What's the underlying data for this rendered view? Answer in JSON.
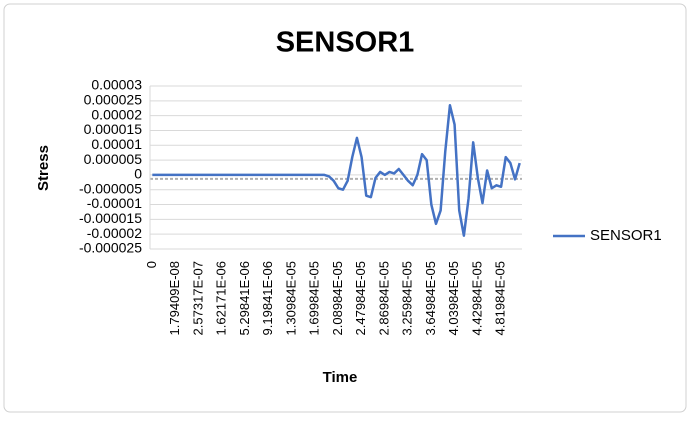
{
  "chart_data": {
    "type": "line",
    "title": "SENSOR1",
    "x_label": "Time",
    "y_label": "Stress",
    "categories": [
      "0",
      null,
      null,
      null,
      null,
      "1.79409E-08",
      null,
      null,
      null,
      null,
      "2.57317E-07",
      null,
      null,
      null,
      null,
      "1.62171E-06",
      null,
      null,
      null,
      null,
      "5.29841E-06",
      null,
      null,
      null,
      null,
      "9.19841E-06",
      null,
      null,
      null,
      null,
      "1.30984E-05",
      null,
      null,
      null,
      null,
      "1.69984E-05",
      null,
      null,
      null,
      null,
      "2.08984E-05",
      null,
      null,
      null,
      null,
      "2.47984E-05",
      null,
      null,
      null,
      null,
      "2.86984E-05",
      null,
      null,
      null,
      null,
      "3.25984E-05",
      null,
      null,
      null,
      null,
      "3.64984E-05",
      null,
      null,
      null,
      null,
      "4.03984E-05",
      null,
      null,
      null,
      null,
      "4.42984E-05",
      null,
      null,
      null,
      null,
      "4.81984E-05",
      null,
      null,
      null,
      null
    ],
    "series": [
      {
        "name": "SENSOR1",
        "color": "#4472c4",
        "values": [
          0,
          0,
          0,
          0,
          0,
          0,
          0,
          0,
          0,
          0,
          0,
          0,
          0,
          0,
          0,
          0,
          0,
          0,
          0,
          0,
          0,
          0,
          0,
          0,
          0,
          0,
          0,
          0,
          0,
          0,
          0,
          0,
          0,
          0,
          0,
          0,
          0,
          0,
          -5e-07,
          -2e-06,
          -4.5e-06,
          -5e-06,
          -2e-06,
          6e-06,
          1.25e-05,
          6e-06,
          -7e-06,
          -7.5e-06,
          -1e-06,
          1e-06,
          0,
          1e-06,
          5e-07,
          2e-06,
          0,
          -2e-06,
          -3.5e-06,
          0,
          7e-06,
          5e-06,
          -1e-05,
          -1.65e-05,
          -1.2e-05,
          8e-06,
          2.35e-05,
          1.7e-05,
          -1.2e-05,
          -2.05e-05,
          -8e-06,
          1.1e-05,
          -1e-06,
          -9.5e-06,
          1.5e-06,
          -4.5e-06,
          -3.5e-06,
          -4e-06,
          6e-06,
          4e-06,
          -1.5e-06,
          4e-06
        ]
      }
    ],
    "ylim": [
      -2.5e-05,
      3e-05
    ],
    "yticks": [
      3e-05,
      2.5e-05,
      2e-05,
      1.5e-05,
      1e-05,
      5e-06,
      0,
      -5e-06,
      -1e-05,
      -1.5e-05,
      -2e-05,
      -2.5e-05
    ],
    "grid": true,
    "legend": "right"
  }
}
